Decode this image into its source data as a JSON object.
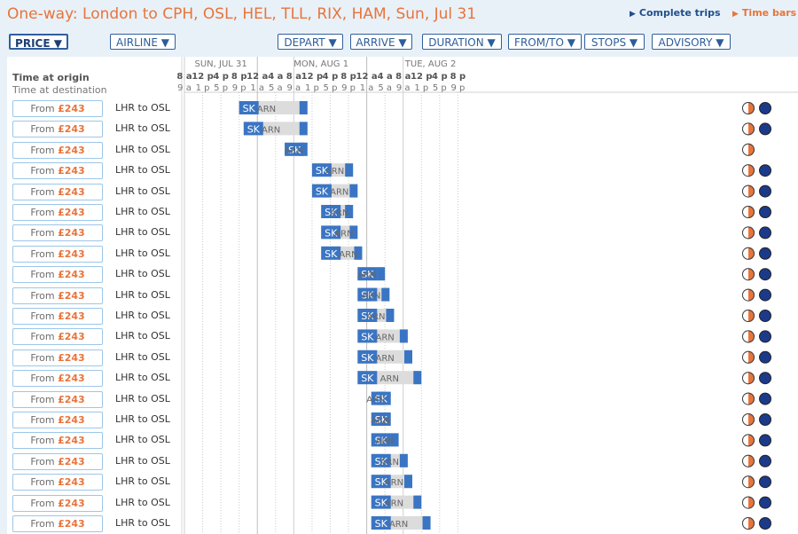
{
  "header": {
    "title": "One-way: London to CPH, OSL, HEL, TLL, RIX, HAM, Sun, Jul 31",
    "complete_trips": "Complete trips",
    "time_bars": "Time bars"
  },
  "sort_buttons": [
    {
      "label": "PRICE ▼",
      "active": true
    },
    {
      "label": "AIRLINE ▼"
    },
    {
      "label": "DEPART ▼"
    },
    {
      "label": "ARRIVE ▼"
    },
    {
      "label": "DURATION ▼"
    },
    {
      "label": "FROM/TO ▼"
    },
    {
      "label": "STOPS ▼"
    },
    {
      "label": "ADVISORY ▼"
    }
  ],
  "timeline": {
    "label_origin": "Time at origin",
    "label_destination": "Time at destination",
    "days": [
      "SUN, JUL 31",
      "MON, AUG 1",
      "TUE, AUG 2"
    ],
    "origin_ticks": [
      "8 a",
      "12 p",
      "4 p",
      "8 p",
      "12 a",
      "4 a",
      "8 a",
      "12 p",
      "4 p",
      "8 p",
      "12 a",
      "4 a",
      "8 a",
      "12 p",
      "4 p",
      "8 p"
    ],
    "dest_ticks": [
      "9 a",
      "1 p",
      "5 p",
      "9 p",
      "1 a",
      "5 a",
      "9 a",
      "1 p",
      "5 p",
      "9 p",
      "1 a",
      "5 a",
      "9 a",
      "1 p",
      "5 p",
      "9 p"
    ]
  },
  "colors": {
    "accent": "#e8743b",
    "airline_block": "#3a75c4",
    "layover_bar": "#dcdcdc",
    "link_blue": "#1f4e8c"
  },
  "flights": [
    {
      "from_label": "From",
      "price": "£243",
      "route": "LHR to OSL",
      "airline": "SK",
      "stop": "ARN",
      "depart": "Jul 31 20:00",
      "stop_label_at": "Aug 1 02:00",
      "arrive": "Aug 1 11:00",
      "icons": [
        "sun-moon-icon",
        "night-icon"
      ]
    },
    {
      "from_label": "From",
      "price": "£243",
      "route": "LHR to OSL",
      "airline": "SK",
      "stop": "ARN",
      "depart": "Jul 31 21:00",
      "stop_label_at": "Aug 1 03:00",
      "arrive": "Aug 1 11:00",
      "icons": [
        "sun-moon-icon",
        "night-icon"
      ]
    },
    {
      "from_label": "From",
      "price": "£243",
      "route": "LHR to OSL",
      "airline": "SK",
      "stop": "ARN",
      "depart": "Aug 1 06:00",
      "stop_label_at": "Aug 1 08:00",
      "arrive": "Aug 1 11:00",
      "icons": [
        "sun-moon-icon"
      ]
    },
    {
      "from_label": "From",
      "price": "£243",
      "route": "LHR to OSL",
      "airline": "SK",
      "stop": "ARN",
      "depart": "Aug 1 12:00",
      "stop_label_at": "Aug 1 17:00",
      "arrive": "Aug 1 21:00",
      "icons": [
        "sun-moon-icon",
        "night-icon"
      ]
    },
    {
      "from_label": "From",
      "price": "£243",
      "route": "LHR to OSL",
      "airline": "SK",
      "stop": "ARN",
      "depart": "Aug 1 12:00",
      "stop_label_at": "Aug 1 18:00",
      "arrive": "Aug 1 22:00",
      "icons": [
        "sun-moon-icon",
        "night-icon"
      ]
    },
    {
      "from_label": "From",
      "price": "£243",
      "route": "LHR to OSL",
      "airline": "SK",
      "stop": "ARN",
      "depart": "Aug 1 14:00",
      "stop_label_at": "Aug 1 18:00",
      "arrive": "Aug 1 21:00",
      "icons": [
        "sun-moon-icon",
        "night-icon"
      ]
    },
    {
      "from_label": "From",
      "price": "£243",
      "route": "LHR to OSL",
      "airline": "SK",
      "stop": "ARN",
      "depart": "Aug 1 14:00",
      "stop_label_at": "Aug 1 19:00",
      "arrive": "Aug 1 22:00",
      "icons": [
        "sun-moon-icon",
        "night-icon"
      ]
    },
    {
      "from_label": "From",
      "price": "£243",
      "route": "LHR to OSL",
      "airline": "SK",
      "stop": "ARN",
      "depart": "Aug 1 14:00",
      "stop_label_at": "Aug 1 20:00",
      "arrive": "Aug 1 23:00",
      "icons": [
        "sun-moon-icon",
        "night-icon"
      ]
    },
    {
      "from_label": "From",
      "price": "£243",
      "route": "LHR to OSL",
      "airline": "SK",
      "stop": "ARN",
      "depart": "Aug 1 22:00",
      "stop_label_at": "Aug 2 00:00",
      "arrive": "Aug 2 04:00",
      "icons": [
        "sun-moon-icon",
        "night-icon"
      ]
    },
    {
      "from_label": "From",
      "price": "£243",
      "route": "LHR to OSL",
      "airline": "SK",
      "stop": "ARN",
      "depart": "Aug 1 22:00",
      "stop_label_at": "Aug 2 01:00",
      "arrive": "Aug 2 05:00",
      "icons": [
        "sun-moon-icon",
        "night-icon"
      ]
    },
    {
      "from_label": "From",
      "price": "£243",
      "route": "LHR to OSL",
      "airline": "SK",
      "stop": "ARN",
      "depart": "Aug 1 22:00",
      "stop_label_at": "Aug 2 02:00",
      "arrive": "Aug 2 06:00",
      "icons": [
        "sun-moon-icon",
        "night-icon"
      ]
    },
    {
      "from_label": "From",
      "price": "£243",
      "route": "LHR to OSL",
      "airline": "SK",
      "stop": "ARN",
      "depart": "Aug 1 22:00",
      "stop_label_at": "Aug 2 04:00",
      "arrive": "Aug 2 09:00",
      "icons": [
        "sun-moon-icon",
        "night-icon"
      ]
    },
    {
      "from_label": "From",
      "price": "£243",
      "route": "LHR to OSL",
      "airline": "SK",
      "stop": "ARN",
      "depart": "Aug 1 22:00",
      "stop_label_at": "Aug 2 04:00",
      "arrive": "Aug 2 10:00",
      "icons": [
        "sun-moon-icon",
        "night-icon"
      ]
    },
    {
      "from_label": "From",
      "price": "£243",
      "route": "LHR to OSL",
      "airline": "SK",
      "stop": "ARN",
      "depart": "Aug 1 22:00",
      "stop_label_at": "Aug 2 05:00",
      "arrive": "Aug 2 12:00",
      "icons": [
        "sun-moon-icon",
        "night-icon"
      ]
    },
    {
      "from_label": "From",
      "price": "£243",
      "route": "LHR to OSL",
      "airline": "SK",
      "stop": "ARN",
      "depart": "Aug 2 01:00",
      "stop_label_at": "Aug 2 02:00",
      "arrive": "Aug 2 04:00",
      "icons": [
        "sun-moon-icon",
        "night-icon"
      ]
    },
    {
      "from_label": "From",
      "price": "£243",
      "route": "LHR to OSL",
      "airline": "SK",
      "stop": "ARN",
      "depart": "Aug 2 01:00",
      "stop_label_at": "Aug 2 03:00",
      "arrive": "Aug 2 05:00",
      "icons": [
        "sun-moon-icon",
        "night-icon"
      ]
    },
    {
      "from_label": "From",
      "price": "£243",
      "route": "LHR to OSL",
      "airline": "SK",
      "stop": "ARN",
      "depart": "Aug 2 01:00",
      "stop_label_at": "Aug 2 04:00",
      "arrive": "Aug 2 07:00",
      "icons": [
        "sun-moon-icon",
        "night-icon"
      ]
    },
    {
      "from_label": "From",
      "price": "£243",
      "route": "LHR to OSL",
      "airline": "SK",
      "stop": "ARN",
      "depart": "Aug 2 01:00",
      "stop_label_at": "Aug 2 05:00",
      "arrive": "Aug 2 09:00",
      "icons": [
        "sun-moon-icon",
        "night-icon"
      ]
    },
    {
      "from_label": "From",
      "price": "£243",
      "route": "LHR to OSL",
      "airline": "SK",
      "stop": "ARN",
      "depart": "Aug 2 01:00",
      "stop_label_at": "Aug 2 06:00",
      "arrive": "Aug 2 10:00",
      "icons": [
        "sun-moon-icon",
        "night-icon"
      ]
    },
    {
      "from_label": "From",
      "price": "£243",
      "route": "LHR to OSL",
      "airline": "SK",
      "stop": "ARN",
      "depart": "Aug 2 01:00",
      "stop_label_at": "Aug 2 06:00",
      "arrive": "Aug 2 12:00",
      "icons": [
        "sun-moon-icon",
        "night-icon"
      ]
    },
    {
      "from_label": "From",
      "price": "£243",
      "route": "LHR to OSL",
      "airline": "SK",
      "stop": "ARN",
      "depart": "Aug 2 01:00",
      "stop_label_at": "Aug 2 07:00",
      "arrive": "Aug 2 14:00",
      "icons": [
        "sun-moon-icon",
        "night-icon"
      ]
    }
  ]
}
